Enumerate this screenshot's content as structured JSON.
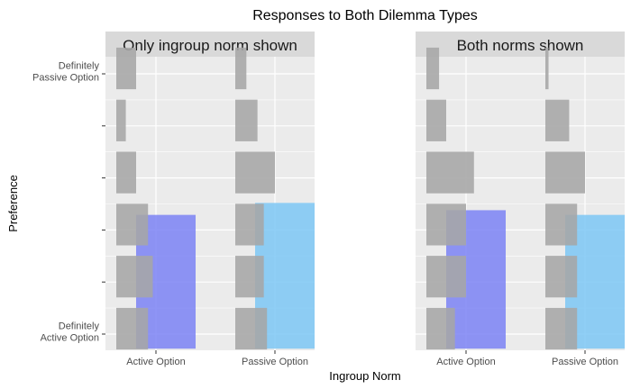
{
  "chart_data": {
    "type": "bar",
    "title": "Responses to Both Dilemma Types",
    "xlabel": "Ingroup Norm",
    "ylabel": "Preference",
    "x_categories": [
      "Active Option",
      "Passive Option"
    ],
    "y_levels": 6,
    "y_tick_labels": [
      "Definitely\nActive Option",
      "",
      "",
      "",
      "",
      "Definitely\nPassive Option"
    ],
    "grid": true,
    "colors": {
      "panel_background": "#ebebeb",
      "grid": "#ffffff",
      "strip": "#d9d9d9",
      "gray_bars": "#a6a6a6",
      "active_norm_bar": "#7b83f5",
      "passive_norm_bar": "#7cc7f5"
    },
    "panels": [
      {
        "strip": "Only ingroup norm shown",
        "response_distribution": {
          "Active Option": [
            0.4,
            0.46,
            0.4,
            0.25,
            0.12,
            0.25
          ],
          "Passive Option": [
            0.4,
            0.36,
            0.36,
            0.5,
            0.28,
            0.14
          ]
        },
        "mean_preference": {
          "Active Option": 3.29,
          "Passive Option": 3.52
        }
      },
      {
        "strip": "Both norms shown",
        "response_distribution": {
          "Active Option": [
            0.36,
            0.5,
            0.5,
            0.6,
            0.25,
            0.16
          ],
          "Passive Option": [
            0.4,
            0.4,
            0.4,
            0.5,
            0.3,
            0.04
          ]
        },
        "mean_preference": {
          "Active Option": 3.38,
          "Passive Option": 3.29
        }
      }
    ]
  }
}
